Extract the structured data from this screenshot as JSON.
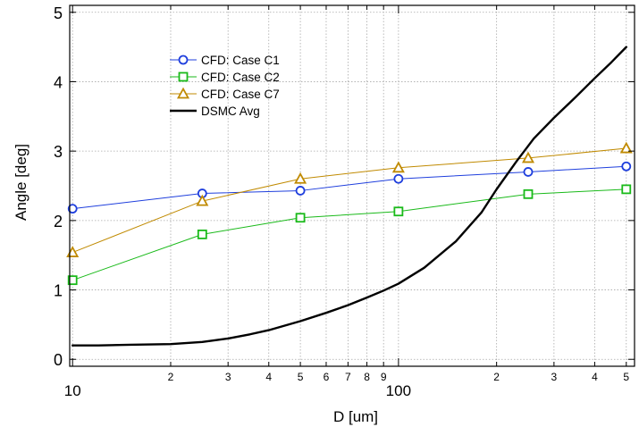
{
  "chart_data": {
    "type": "line",
    "title": "",
    "xlabel": "D [um]",
    "ylabel": "Angle [deg]",
    "x_scale": "log",
    "xlim": [
      9.8,
      530
    ],
    "ylim": [
      -0.1,
      5.1
    ],
    "grid": true,
    "legend_position": "upper-left",
    "x_major_ticks": [
      {
        "value": 10,
        "label": "10"
      },
      {
        "value": 100,
        "label": "100"
      }
    ],
    "x_minor_ticks": [
      {
        "value": 20,
        "label": "2"
      },
      {
        "value": 30,
        "label": "3"
      },
      {
        "value": 40,
        "label": "4"
      },
      {
        "value": 50,
        "label": "5"
      },
      {
        "value": 60,
        "label": "6"
      },
      {
        "value": 70,
        "label": "7"
      },
      {
        "value": 80,
        "label": "8"
      },
      {
        "value": 90,
        "label": "9"
      },
      {
        "value": 200,
        "label": "2"
      },
      {
        "value": 300,
        "label": "3"
      },
      {
        "value": 400,
        "label": "4"
      },
      {
        "value": 500,
        "label": "5"
      }
    ],
    "y_ticks": [
      {
        "value": 0,
        "label": "0"
      },
      {
        "value": 1,
        "label": "1"
      },
      {
        "value": 2,
        "label": "2"
      },
      {
        "value": 3,
        "label": "3"
      },
      {
        "value": 4,
        "label": "4"
      },
      {
        "value": 5,
        "label": "5"
      }
    ],
    "series": [
      {
        "name": "CFD: Case C1",
        "color": "#1f3fdd",
        "marker": "circle",
        "x": [
          10,
          25,
          50,
          100,
          250,
          500
        ],
        "y": [
          2.17,
          2.39,
          2.43,
          2.6,
          2.7,
          2.78
        ]
      },
      {
        "name": "CFD: Case C2",
        "color": "#1aba1a",
        "marker": "square",
        "x": [
          10,
          25,
          50,
          100,
          250,
          500
        ],
        "y": [
          1.14,
          1.8,
          2.04,
          2.13,
          2.38,
          2.45
        ]
      },
      {
        "name": "CFD: Case C7",
        "color": "#c08a00",
        "marker": "triangle",
        "x": [
          10,
          25,
          50,
          100,
          250,
          500
        ],
        "y": [
          1.54,
          2.28,
          2.6,
          2.76,
          2.9,
          3.04
        ]
      },
      {
        "name": "DSMC Avg",
        "color": "#000000",
        "marker": "none",
        "x": [
          10,
          12,
          15,
          20,
          25,
          30,
          35,
          40,
          50,
          60,
          70,
          80,
          90,
          100,
          120,
          150,
          180,
          200,
          230,
          260,
          300,
          350,
          400,
          450,
          500
        ],
        "y": [
          0.2,
          0.2,
          0.21,
          0.22,
          0.25,
          0.3,
          0.36,
          0.42,
          0.55,
          0.67,
          0.78,
          0.89,
          0.99,
          1.09,
          1.32,
          1.7,
          2.12,
          2.45,
          2.85,
          3.18,
          3.48,
          3.78,
          4.05,
          4.28,
          4.5
        ]
      }
    ]
  }
}
